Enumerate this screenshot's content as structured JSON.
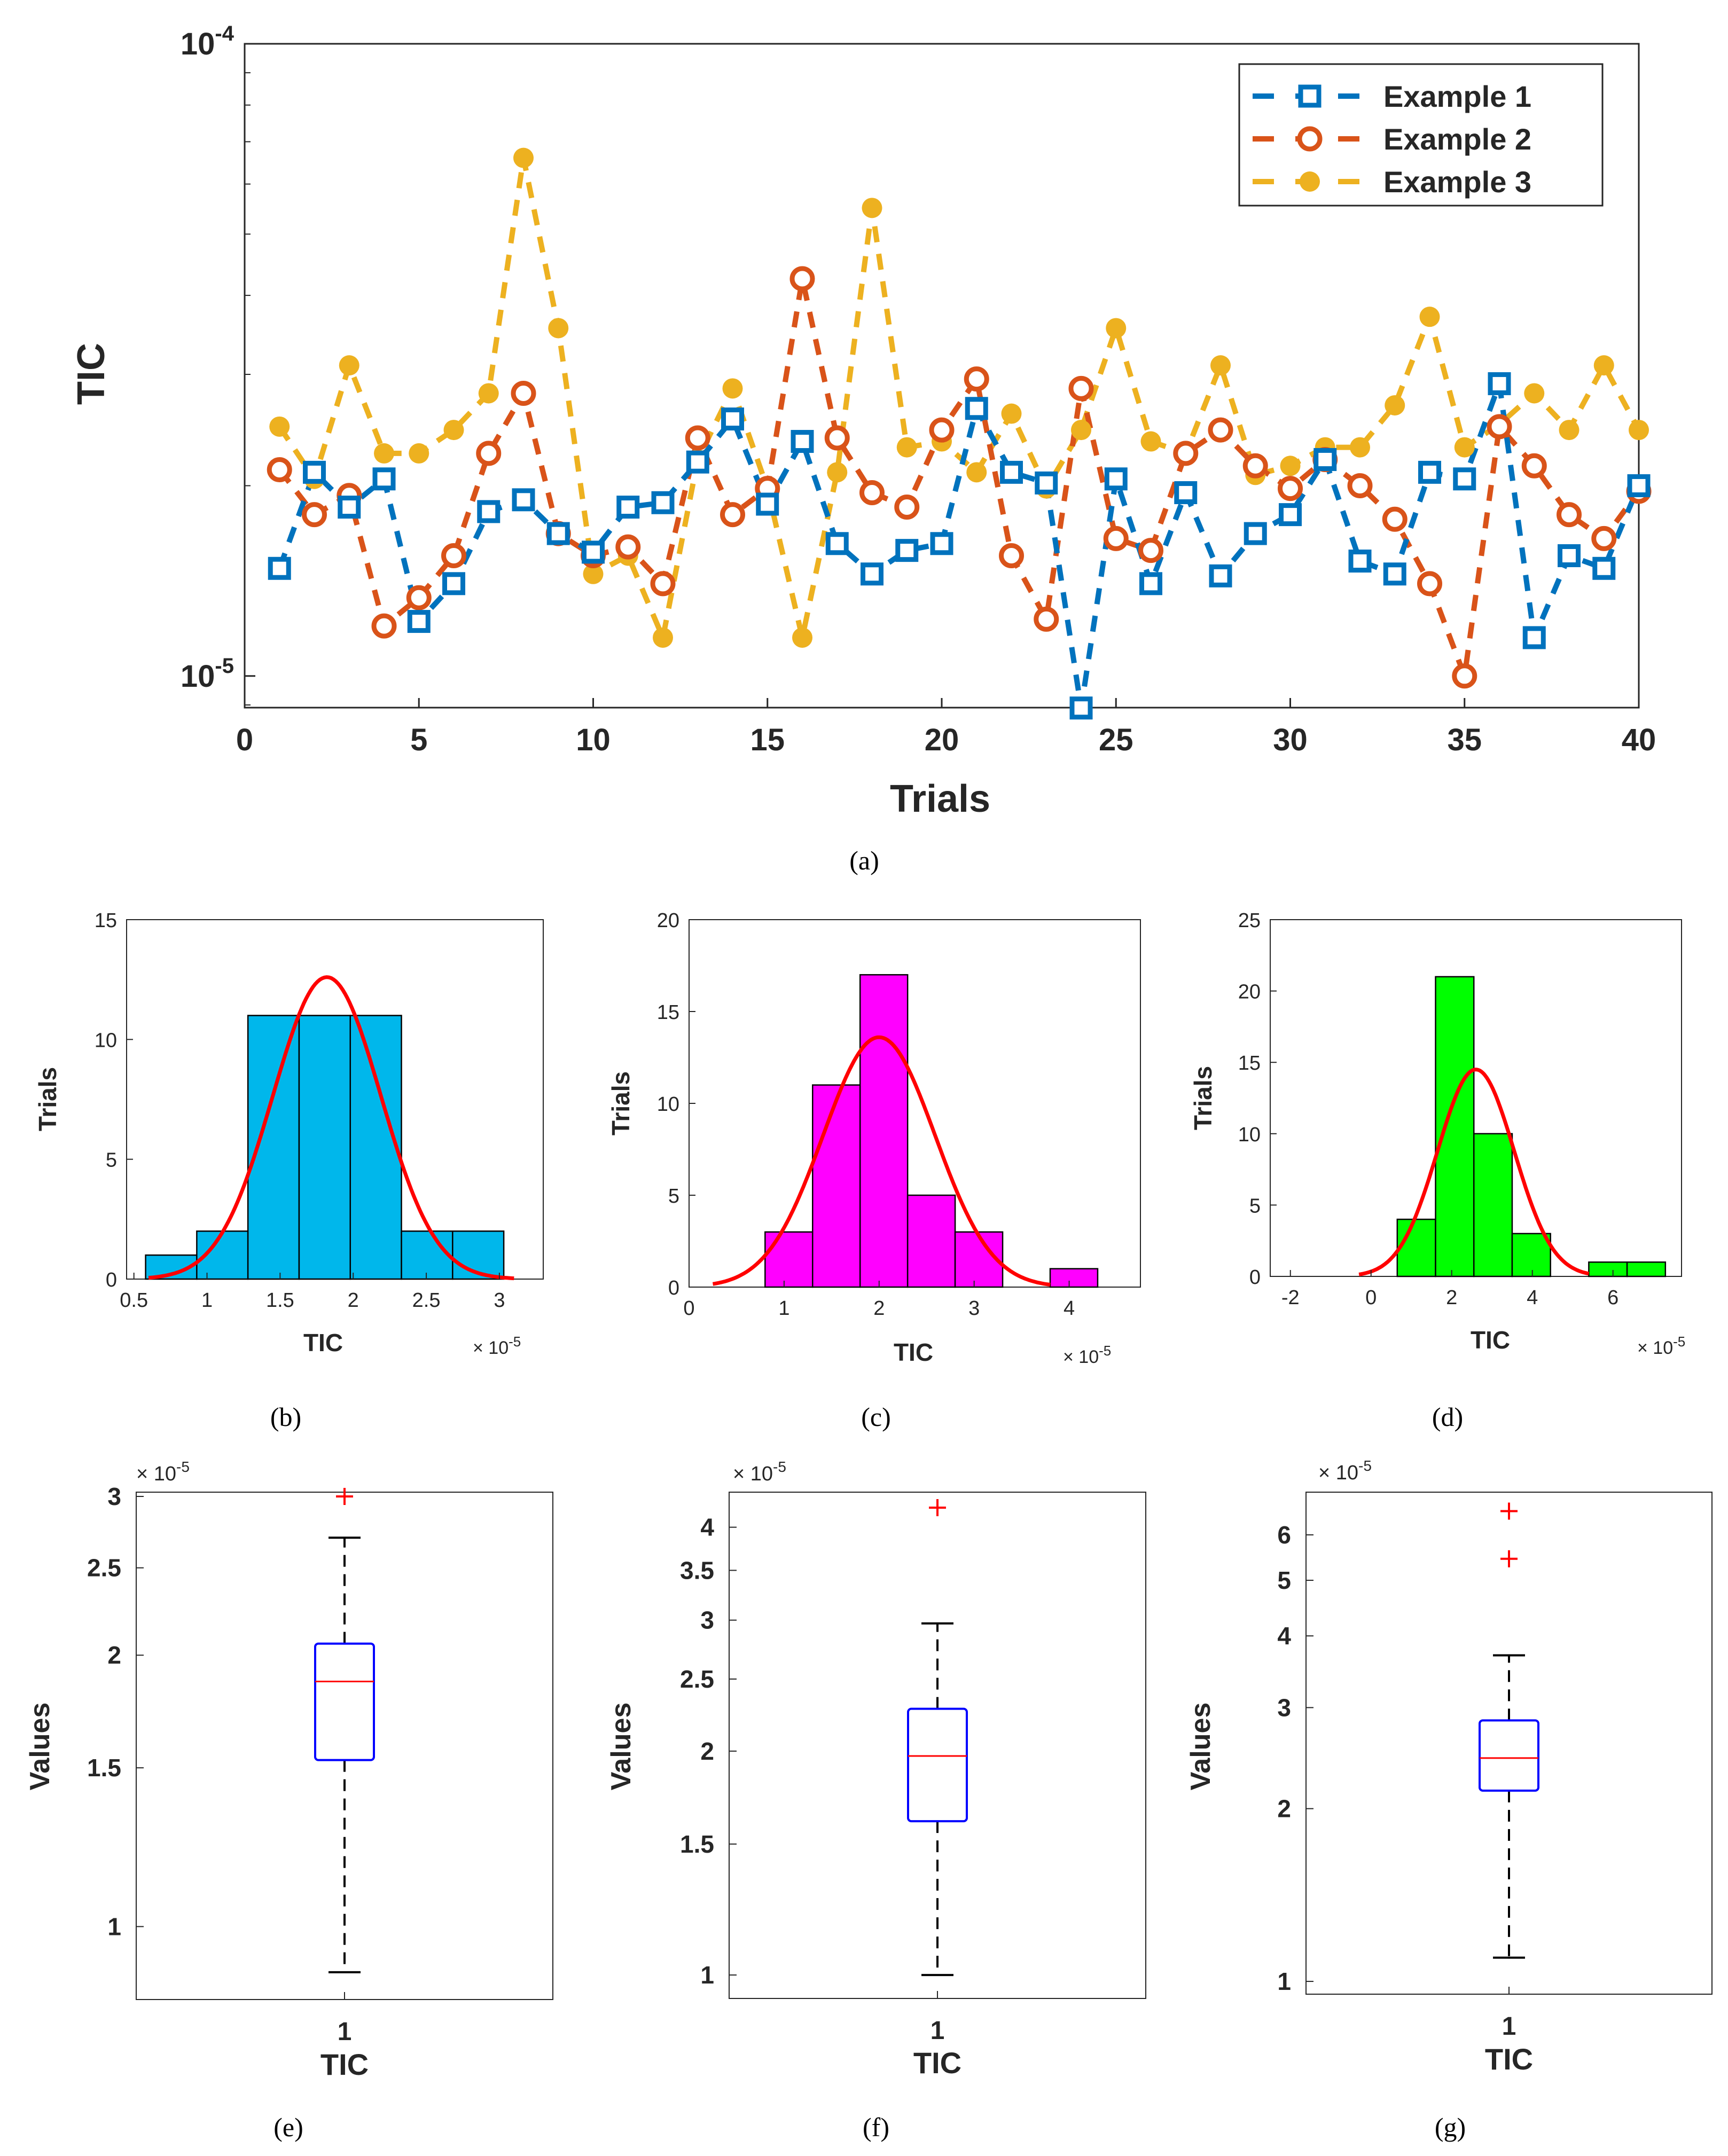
{
  "captions": {
    "a": "(a)",
    "b": "(b)",
    "c": "(c)",
    "d": "(d)",
    "e": "(e)",
    "f": "(f)",
    "g": "(g)"
  },
  "chart_data": [
    {
      "id": "a",
      "type": "line",
      "scale": "log",
      "xlabel": "Trials",
      "ylabel": "TIC",
      "xlim": [
        0,
        40
      ],
      "ylim_exp": [
        -5.05,
        -4.0
      ],
      "xticks": [
        "0",
        "5",
        "10",
        "15",
        "20",
        "25",
        "30",
        "35",
        "40"
      ],
      "yticks": [
        {
          "base": "10",
          "exp": "-4",
          "value": 0.0001
        },
        {
          "base": "10",
          "exp": "-5",
          "value": 1e-05
        }
      ],
      "series": [
        {
          "name": "Example 1",
          "color": "#0072BD",
          "marker": "square",
          "values": [
            1.48,
            2.1,
            1.85,
            2.05,
            1.22,
            1.4,
            1.82,
            1.9,
            1.68,
            1.57,
            1.85,
            1.88,
            2.18,
            2.55,
            1.87,
            2.35,
            1.62,
            1.45,
            1.58,
            1.62,
            2.65,
            2.1,
            2.02,
            0.89,
            2.05,
            1.4,
            1.95,
            1.44,
            1.68,
            1.8,
            2.2,
            1.52,
            1.45,
            2.1,
            2.05,
            2.9,
            1.15,
            1.55,
            1.48,
            2.0
          ]
        },
        {
          "name": "Example 2",
          "color": "#D95319",
          "marker": "circle",
          "values": [
            2.12,
            1.8,
            1.93,
            1.2,
            1.33,
            1.55,
            2.25,
            2.8,
            1.68,
            1.55,
            1.6,
            1.4,
            2.38,
            1.8,
            1.98,
            4.25,
            2.38,
            1.95,
            1.85,
            2.45,
            2.95,
            1.55,
            1.23,
            2.85,
            1.65,
            1.58,
            2.25,
            2.45,
            2.15,
            1.98,
            2.2,
            2.0,
            1.77,
            1.4,
            1.0,
            2.48,
            2.15,
            1.8,
            1.65,
            1.96
          ]
        },
        {
          "name": "Example 3",
          "color": "#EDB120",
          "marker": "dot",
          "values": [
            2.48,
            2.05,
            3.1,
            2.25,
            2.25,
            2.45,
            2.8,
            6.6,
            3.55,
            1.45,
            1.55,
            1.15,
            2.2,
            2.85,
            1.98,
            1.15,
            2.1,
            5.5,
            2.3,
            2.35,
            2.1,
            2.6,
            1.98,
            2.45,
            3.55,
            2.35,
            2.25,
            3.1,
            2.08,
            2.15,
            2.3,
            2.3,
            2.68,
            3.7,
            2.3,
            2.5,
            2.8,
            2.45,
            3.1,
            2.45
          ]
        }
      ],
      "legend": {
        "location": "top-right",
        "entries": [
          "Example 1",
          "Example 2",
          "Example 3"
        ]
      }
    },
    {
      "id": "b",
      "type": "histogram",
      "xlabel": "TIC",
      "ylabel": "Trials",
      "xlim": [
        0.45,
        3.3
      ],
      "ylim": [
        0,
        15
      ],
      "xticks": [
        "0.5",
        "1",
        "1.5",
        "2",
        "2.5",
        "3"
      ],
      "yticks": [
        "0",
        "5",
        "10",
        "15"
      ],
      "bins": [
        [
          0.58,
          0.93,
          1
        ],
        [
          0.93,
          1.28,
          2
        ],
        [
          1.28,
          1.63,
          11
        ],
        [
          1.63,
          1.98,
          11
        ],
        [
          1.98,
          2.33,
          11
        ],
        [
          2.33,
          2.68,
          2
        ],
        [
          2.68,
          3.03,
          2
        ]
      ],
      "bar_color": "#00B7EB",
      "fit": {
        "mu": 1.82,
        "sigma": 0.37,
        "peak": 12.6,
        "xrange": [
          0.6,
          3.1
        ],
        "color": "#FF0000"
      },
      "exponent": "× 10",
      "exponent_power": "-5"
    },
    {
      "id": "c",
      "type": "histogram",
      "xlabel": "TIC",
      "ylabel": "Trials",
      "xlim": [
        0,
        4.75
      ],
      "ylim": [
        0,
        20
      ],
      "xticks": [
        "0",
        "1",
        "2",
        "3",
        "4"
      ],
      "yticks": [
        "0",
        "5",
        "10",
        "15",
        "20"
      ],
      "bins": [
        [
          0.8,
          1.3,
          3
        ],
        [
          1.3,
          1.8,
          11
        ],
        [
          1.8,
          2.3,
          17
        ],
        [
          2.3,
          2.8,
          5
        ],
        [
          2.8,
          3.3,
          3
        ],
        [
          3.3,
          3.8,
          0
        ],
        [
          3.8,
          4.3,
          1
        ]
      ],
      "bar_color": "#FF00FF",
      "fit": {
        "mu": 2.0,
        "sigma": 0.59,
        "peak": 13.6,
        "xrange": [
          0.25,
          3.8
        ],
        "color": "#FF0000"
      },
      "exponent": "× 10",
      "exponent_power": "-5"
    },
    {
      "id": "d",
      "type": "histogram",
      "xlabel": "TIC",
      "ylabel": "Trials",
      "xlim": [
        -2.5,
        7.7
      ],
      "ylim": [
        0,
        25
      ],
      "xticks": [
        "-2",
        "0",
        "2",
        "4",
        "6"
      ],
      "yticks": [
        "0",
        "5",
        "10",
        "15",
        "20",
        "25"
      ],
      "bins": [
        [
          0.65,
          1.6,
          4
        ],
        [
          1.6,
          2.55,
          21
        ],
        [
          2.55,
          3.5,
          10
        ],
        [
          3.5,
          4.45,
          3
        ],
        [
          4.45,
          5.4,
          0
        ],
        [
          5.4,
          6.35,
          1
        ],
        [
          6.35,
          7.3,
          1
        ]
      ],
      "bar_color": "#00FF00",
      "fit": {
        "mu": 2.6,
        "sigma": 0.95,
        "peak": 14.5,
        "xrange": [
          -0.3,
          5.4
        ],
        "color": "#FF0000"
      },
      "exponent": "× 10",
      "exponent_power": "-5"
    },
    {
      "id": "e",
      "type": "boxplot",
      "xlabel": "TIC",
      "ylabel": "Values",
      "scale": "log",
      "ylim": [
        0.83,
        3.0
      ],
      "xtick": "1",
      "yticks": [
        {
          "label": "1",
          "value": 1
        },
        {
          "label": "1.5",
          "value": 1.5
        },
        {
          "label": "2",
          "value": 2
        },
        {
          "label": "2.5",
          "value": 2.5
        },
        {
          "label": "3",
          "value": 3
        }
      ],
      "stats": {
        "whisker_low": 0.89,
        "q1": 1.53,
        "median": 1.87,
        "q3": 2.06,
        "whisker_high": 2.7
      },
      "outliers": [
        3.0
      ],
      "exponent": "× 10",
      "exponent_power": "-5"
    },
    {
      "id": "f",
      "type": "boxplot",
      "xlabel": "TIC",
      "ylabel": "Values",
      "scale": "log",
      "ylim": [
        0.93,
        4.4
      ],
      "xtick": "1",
      "yticks": [
        {
          "label": "1",
          "value": 1
        },
        {
          "label": "1.5",
          "value": 1.5
        },
        {
          "label": "2",
          "value": 2
        },
        {
          "label": "2.5",
          "value": 2.5
        },
        {
          "label": "3",
          "value": 3
        },
        {
          "label": "3.5",
          "value": 3.5
        },
        {
          "label": "4",
          "value": 4
        }
      ],
      "stats": {
        "whisker_low": 1.0,
        "q1": 1.61,
        "median": 1.97,
        "q3": 2.28,
        "whisker_high": 2.97
      },
      "outliers": [
        4.25
      ],
      "exponent": "× 10",
      "exponent_power": "-5"
    },
    {
      "id": "g",
      "type": "boxplot",
      "xlabel": "TIC",
      "ylabel": "Values",
      "scale": "log",
      "ylim": [
        0.95,
        7.0
      ],
      "xtick": "1",
      "yticks": [
        {
          "label": "1",
          "value": 1
        },
        {
          "label": "2",
          "value": 2
        },
        {
          "label": "3",
          "value": 3
        },
        {
          "label": "4",
          "value": 4
        },
        {
          "label": "5",
          "value": 5
        },
        {
          "label": "6",
          "value": 6
        }
      ],
      "stats": {
        "whisker_low": 1.1,
        "q1": 2.15,
        "median": 2.45,
        "q3": 2.85,
        "whisker_high": 3.7
      },
      "outliers": [
        6.6,
        5.45
      ],
      "exponent": "× 10",
      "exponent_power": "-5"
    }
  ]
}
